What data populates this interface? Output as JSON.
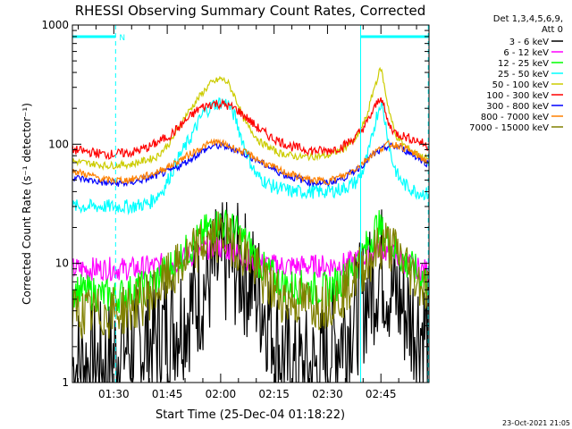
{
  "chart_data": {
    "type": "line",
    "title": "RHESSI Observing Summary Count Rates, Corrected",
    "xlabel": "Start Time (25-Dec-04 01:18:22)",
    "ylabel": "Corrected Count Rate (s⁻¹ detector⁻¹)",
    "x_unit": "minutes of day",
    "xlim": [
      78.37,
      178.5
    ],
    "ylim": [
      1,
      1000
    ],
    "y_scale": "log",
    "x_ticks": [
      {
        "value": 90,
        "label": "01:30"
      },
      {
        "value": 105,
        "label": "01:45"
      },
      {
        "value": 120,
        "label": "02:00"
      },
      {
        "value": 135,
        "label": "02:15"
      },
      {
        "value": 150,
        "label": "02:30"
      },
      {
        "value": 165,
        "label": "02:45"
      }
    ],
    "y_ticks": [
      {
        "value": 1,
        "label": "1"
      },
      {
        "value": 10,
        "label": "10"
      },
      {
        "value": 100,
        "label": "100"
      },
      {
        "value": 1000,
        "label": "1000"
      }
    ],
    "legend_header": [
      "Det 1,3,4,5,6,9,",
      "Att 0"
    ],
    "legend_position": "right",
    "timestamp": "23-Oct-2021 21:05",
    "grid": false,
    "series": [
      {
        "name": "3 - 6 keV",
        "color": "#000000",
        "noise": 0.55,
        "x": [
          78.4,
          88,
          92,
          96,
          102,
          110,
          114,
          118,
          122,
          126,
          130,
          134,
          136,
          140,
          148,
          152,
          158,
          162,
          165,
          168,
          172,
          174,
          178.3
        ],
        "y": [
          1.4,
          1.4,
          2.0,
          2.0,
          2.4,
          3.8,
          5.5,
          8.5,
          10,
          9,
          6,
          3.5,
          2.0,
          1.2,
          1.3,
          2.2,
          3.8,
          6,
          9.5,
          6,
          4,
          3.2,
          2.6
        ]
      },
      {
        "name": "6 - 12 keV",
        "color": "#ff00ff",
        "noise": 0.1,
        "x": [
          78.4,
          95,
          102,
          108,
          114,
          118,
          122,
          126,
          130,
          136,
          150,
          156,
          160,
          164,
          168,
          172,
          178.3
        ],
        "y": [
          9,
          9,
          9.5,
          10.5,
          12.5,
          14,
          13,
          11.5,
          10,
          9.5,
          9.5,
          10,
          11,
          13.5,
          12,
          10,
          8.5
        ]
      },
      {
        "name": "12 - 25 keV",
        "color": "#00ff00",
        "noise": 0.15,
        "x": [
          78.4,
          90,
          100,
          106,
          112,
          116,
          120,
          124,
          128,
          132,
          138,
          150,
          156,
          160,
          164,
          168,
          172,
          176,
          178.3
        ],
        "y": [
          6,
          5.2,
          6.5,
          9.5,
          14,
          19,
          22,
          19,
          14,
          9,
          6.5,
          6,
          8,
          12,
          21,
          14,
          10,
          8,
          7
        ]
      },
      {
        "name": "25 - 50 keV",
        "color": "#00ffff",
        "noise": 0.06,
        "x": [
          78.4,
          95,
          100,
          104,
          108,
          112,
          115,
          118,
          120,
          122,
          124,
          126,
          128,
          130,
          134,
          140,
          150,
          154,
          158,
          160,
          162,
          163.5,
          165,
          166.5,
          168,
          170,
          172,
          175,
          178.3
        ],
        "y": [
          30,
          30,
          32,
          42,
          75,
          120,
          180,
          215,
          225,
          220,
          170,
          110,
          75,
          55,
          45,
          40,
          40,
          42,
          48,
          60,
          95,
          160,
          230,
          140,
          75,
          52,
          45,
          40,
          38
        ]
      },
      {
        "name": "50 - 100 keV",
        "color": "#cccc00",
        "noise": 0.03,
        "x": [
          78.4,
          88,
          95,
          102,
          106,
          110,
          114,
          117,
          120,
          122,
          124,
          127,
          131,
          136,
          142,
          150,
          154,
          158,
          161,
          163,
          165,
          167,
          169,
          172,
          176,
          178.3
        ],
        "y": [
          72,
          66,
          68,
          78,
          105,
          170,
          250,
          320,
          355,
          330,
          250,
          150,
          105,
          85,
          78,
          80,
          90,
          110,
          170,
          290,
          440,
          210,
          120,
          95,
          80,
          75
        ]
      },
      {
        "name": "100 - 300 keV",
        "color": "#ff0000",
        "noise": 0.04,
        "x": [
          78.4,
          88,
          95,
          100,
          106,
          110,
          114,
          118,
          121,
          124,
          127,
          130,
          134,
          140,
          146,
          150,
          154,
          158,
          161,
          163,
          165,
          167,
          169,
          172,
          176,
          178.3
        ],
        "y": [
          90,
          82,
          85,
          95,
          120,
          155,
          200,
          220,
          215,
          200,
          170,
          140,
          115,
          95,
          88,
          88,
          95,
          115,
          150,
          195,
          255,
          150,
          125,
          115,
          105,
          95
        ]
      },
      {
        "name": "300 - 800 keV",
        "color": "#0000ff",
        "noise": 0.03,
        "x": [
          78.4,
          88,
          94,
          100,
          106,
          110,
          115,
          118,
          121,
          124,
          128,
          132,
          138,
          145,
          150,
          155,
          159,
          163,
          167,
          170,
          173,
          176,
          178.3
        ],
        "y": [
          53,
          47,
          47,
          52,
          60,
          70,
          88,
          97,
          96,
          90,
          80,
          68,
          55,
          48,
          47,
          53,
          64,
          82,
          96,
          95,
          85,
          75,
          68
        ]
      },
      {
        "name": "800 - 7000 keV",
        "color": "#ff8000",
        "noise": 0.03,
        "x": [
          78.4,
          88,
          94,
          100,
          106,
          110,
          115,
          118,
          121,
          124,
          128,
          132,
          138,
          145,
          150,
          155,
          159,
          163,
          167,
          170,
          173,
          176,
          178.3
        ],
        "y": [
          60,
          50,
          50,
          55,
          66,
          78,
          95,
          105,
          100,
          92,
          82,
          70,
          58,
          50,
          49,
          55,
          66,
          85,
          100,
          98,
          88,
          78,
          70
        ]
      },
      {
        "name": "7000 - 15000 keV",
        "color": "#808000",
        "noise": 0.22,
        "x": [
          78.4,
          88,
          95,
          102,
          108,
          112,
          116,
          120,
          124,
          128,
          132,
          138,
          148,
          154,
          158,
          162,
          166,
          170,
          174,
          178.3
        ],
        "y": [
          3.8,
          3.8,
          4.2,
          6,
          9,
          12,
          15,
          17,
          15,
          11,
          7,
          5,
          4.5,
          5.5,
          8,
          11,
          15,
          12,
          8,
          6
        ]
      }
    ],
    "annotations": {
      "saa_bar": {
        "label": "N",
        "x_start": 78.4,
        "x_end": 90.5,
        "x2_start": 159.3,
        "x2_end": 178.3,
        "color": "#00ffff"
      },
      "vertical_lines": [
        {
          "x": 90.5,
          "style": "dashed",
          "color": "#00ffff"
        },
        {
          "x": 159.3,
          "style": "solid",
          "color": "#00ffff"
        },
        {
          "x": 178.3,
          "style": "dashed",
          "color": "#00ffff"
        }
      ]
    }
  }
}
